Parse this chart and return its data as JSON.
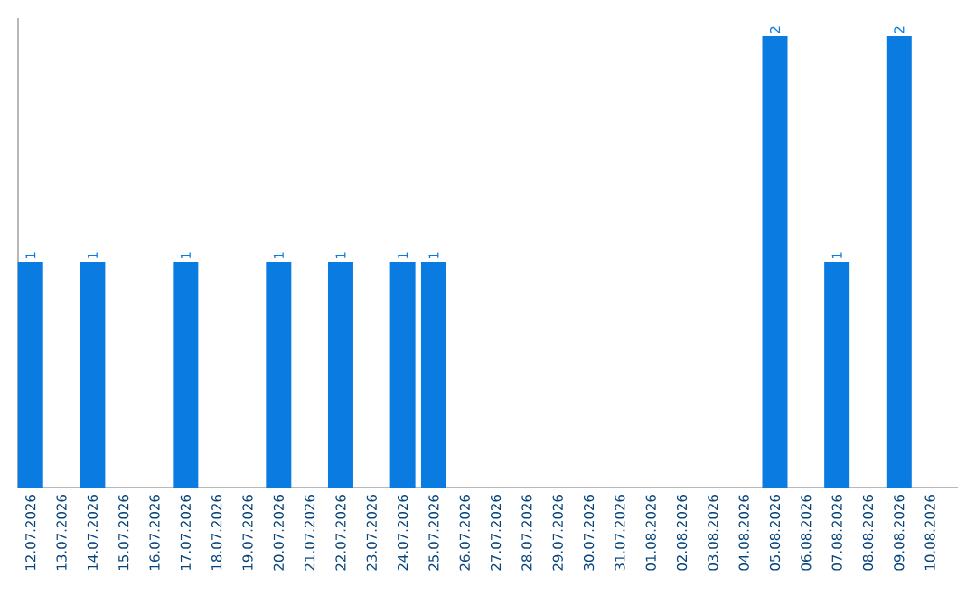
{
  "chart_data": {
    "type": "bar",
    "color": "#0a7be0",
    "categories": [
      "12.07.2026",
      "13.07.2026",
      "14.07.2026",
      "15.07.2026",
      "16.07.2026",
      "17.07.2026",
      "18.07.2026",
      "19.07.2026",
      "20.07.2026",
      "21.07.2026",
      "22.07.2026",
      "23.07.2026",
      "24.07.2026",
      "25.07.2026",
      "26.07.2026",
      "27.07.2026",
      "28.07.2026",
      "29.07.2026",
      "30.07.2026",
      "31.07.2026",
      "01.08.2026",
      "02.08.2026",
      "03.08.2026",
      "04.08.2026",
      "05.08.2026",
      "06.08.2026",
      "07.08.2026",
      "08.08.2026",
      "09.08.2026",
      "10.08.2026"
    ],
    "values": [
      1,
      0,
      1,
      0,
      0,
      1,
      0,
      0,
      1,
      0,
      1,
      0,
      1,
      1,
      0,
      0,
      0,
      0,
      0,
      0,
      0,
      0,
      0,
      0,
      2,
      0,
      1,
      0,
      2,
      0
    ],
    "value_labels": [
      "1",
      null,
      "1",
      null,
      null,
      "1",
      null,
      null,
      "1",
      null,
      "1",
      null,
      "1",
      "1",
      null,
      null,
      null,
      null,
      null,
      null,
      null,
      null,
      null,
      null,
      "2",
      null,
      "1",
      null,
      "2",
      null
    ],
    "ylim": [
      0,
      2.08
    ]
  }
}
